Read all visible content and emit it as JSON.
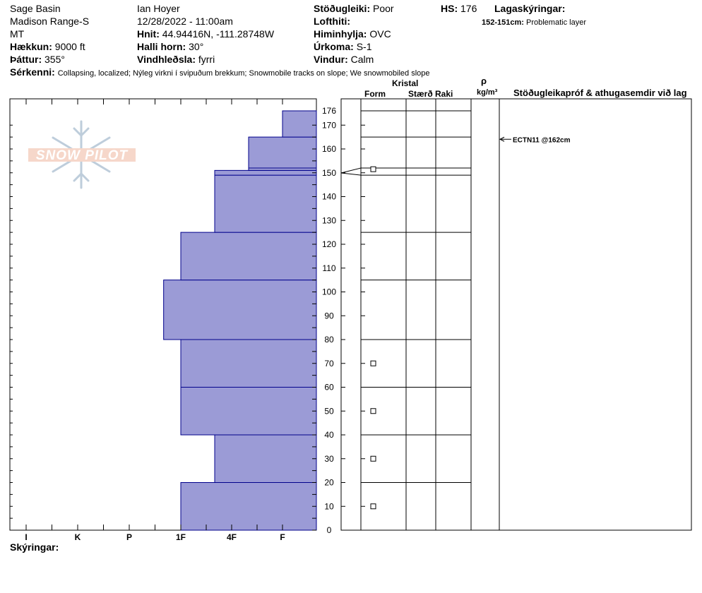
{
  "header": {
    "location_name": "Sage Basin",
    "range": "Madison Range-S",
    "state": "MT",
    "elevation_label": "Hækkun:",
    "elevation_value": "9000 ft",
    "aspect_label": "Þáttur:",
    "aspect_value": "355°",
    "observer": "Ian Hoyer",
    "datetime": "12/28/2022 - 11:00am",
    "coords_label": "Hnit:",
    "coords_value": "44.94416N, -111.28748W",
    "slope_label": "Halli horn:",
    "slope_value": "30°",
    "wind_loading_label": "Vindhleðsla:",
    "wind_loading_value": "fyrri",
    "stability_label": "Stöðugleiki:",
    "stability_value": "Poor",
    "air_temp_label": "Lofthiti:",
    "sky_label": "Himinhylja:",
    "sky_value": "OVC",
    "precip_label": "Úrkoma:",
    "precip_value": "S-1",
    "wind_label": "Vindur:",
    "wind_value": "Calm",
    "hs_label": "HS:",
    "hs_value": "176",
    "layer_notes_label": "Lagaskýringar:",
    "layer_note_range": "152-151cm:",
    "layer_note_text": "Problematic layer",
    "features_label": "Sérkenni:",
    "features_value": "Collapsing, localized;  Nýleg virkni í svipuðum brekkum;  Snowmobile tracks on slope;  We snowmobiled slope",
    "logo_text": "SNOW PILOT",
    "footer_label": "Skýringar:"
  },
  "table": {
    "crystal_header": "Kristal",
    "form_header": "Form",
    "size_header": "Stærð",
    "moisture_header": "Raki",
    "density_symbol": "ρ",
    "density_unit": "kg/m³",
    "tests_header": "Stöðugleikapróf & athugasemdir við lag"
  },
  "colors": {
    "hardness_fill": "#9b9bd6",
    "hardness_stroke": "#00008b"
  },
  "chart_data": {
    "type": "bar",
    "hardness_categories": [
      "I",
      "K",
      "P",
      "1F",
      "4F",
      "F"
    ],
    "depth_ticks": [
      0,
      10,
      20,
      30,
      40,
      50,
      60,
      70,
      80,
      90,
      100,
      110,
      120,
      130,
      140,
      150,
      160,
      170,
      176
    ],
    "depth_range": [
      0,
      176
    ],
    "layers": [
      {
        "bottom": 0,
        "top": 20,
        "hardness": "1F"
      },
      {
        "bottom": 20,
        "top": 40,
        "hardness": "4F-"
      },
      {
        "bottom": 40,
        "top": 60,
        "hardness": "1F"
      },
      {
        "bottom": 60,
        "top": 80,
        "hardness": "1F"
      },
      {
        "bottom": 80,
        "top": 105,
        "hardness": "1F-"
      },
      {
        "bottom": 105,
        "top": 125,
        "hardness": "1F"
      },
      {
        "bottom": 125,
        "top": 149,
        "hardness": "4F-"
      },
      {
        "bottom": 149,
        "top": 151,
        "hardness": "4F-"
      },
      {
        "bottom": 151,
        "top": 152,
        "hardness": "4F+"
      },
      {
        "bottom": 152,
        "top": 165,
        "hardness": "4F+"
      },
      {
        "bottom": 165,
        "top": 176,
        "hardness": "F"
      }
    ],
    "crystal_form_markers_cm": [
      10,
      30,
      50,
      70,
      151.5
    ],
    "stability_tests": [
      {
        "depth": 162,
        "label": "ECTN11 @162cm"
      }
    ]
  }
}
